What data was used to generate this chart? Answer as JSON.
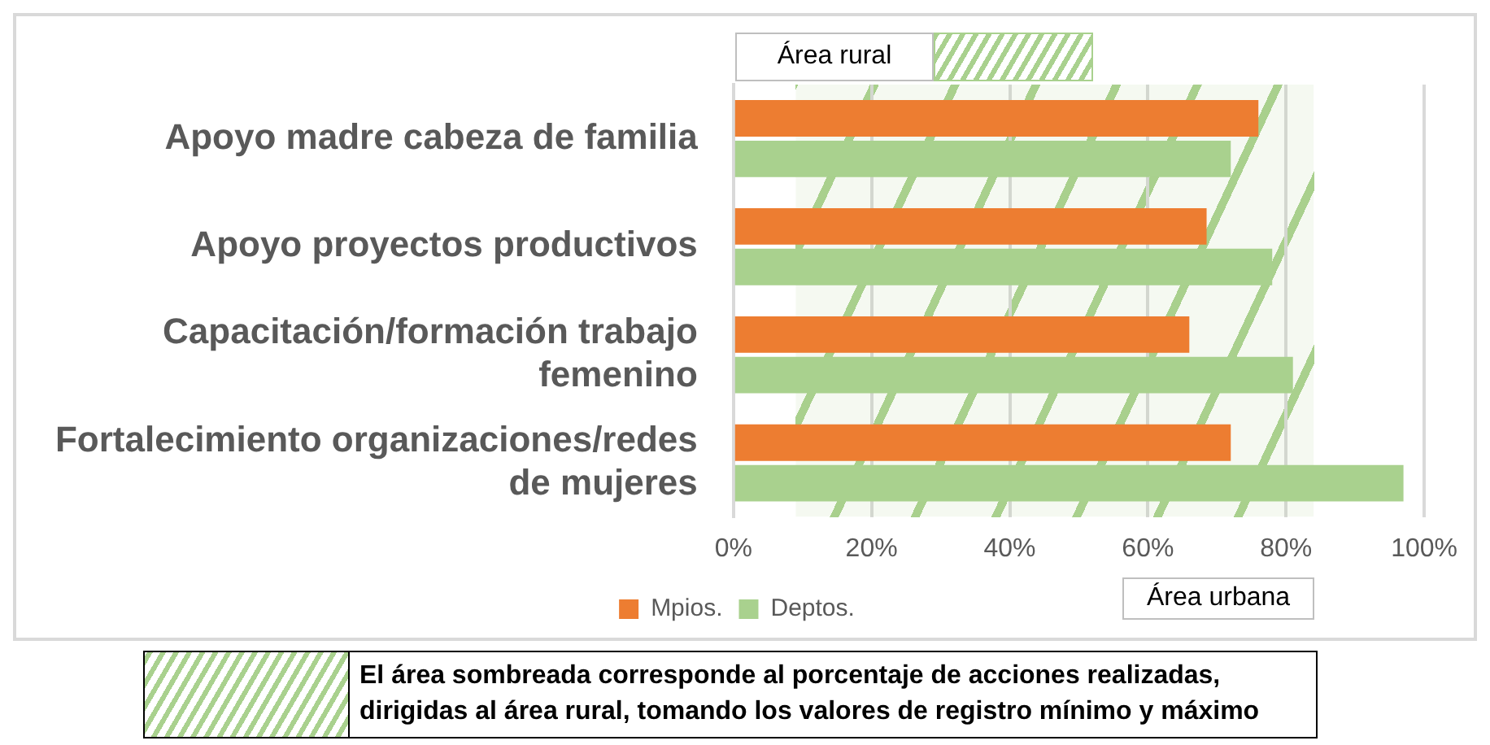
{
  "chart_data": {
    "type": "bar",
    "orientation": "horizontal",
    "categories": [
      "Apoyo madre cabeza de familia",
      "Apoyo proyectos productivos",
      "Capacitación/formación trabajo femenino",
      "Fortalecimiento organizaciones/redes de mujeres"
    ],
    "series": [
      {
        "name": "Mpios.",
        "color": "#ed7d31",
        "values": [
          76,
          68.5,
          66,
          72
        ]
      },
      {
        "name": "Deptos.",
        "color": "#a9d18e",
        "values": [
          72,
          78,
          81,
          97
        ]
      }
    ],
    "xlim": [
      0,
      100
    ],
    "xticks": [
      {
        "value": 0,
        "label": "0%"
      },
      {
        "value": 20,
        "label": "20%"
      },
      {
        "value": 40,
        "label": "40%"
      },
      {
        "value": 60,
        "label": "60%"
      },
      {
        "value": 80,
        "label": "80%"
      },
      {
        "value": 100,
        "label": "100%"
      }
    ],
    "grid": "x",
    "legend": "bottom",
    "bands": [
      {
        "axis": "x",
        "from": 9,
        "to": 84,
        "label": "Área rural",
        "color": "#a9d18e"
      }
    ],
    "annotations": [
      "Área urbana",
      "El área sombreada corresponde al porcentaje de acciones realizadas, dirigidas al área rural, tomando los valores de registro mínimo y máximo"
    ]
  }
}
